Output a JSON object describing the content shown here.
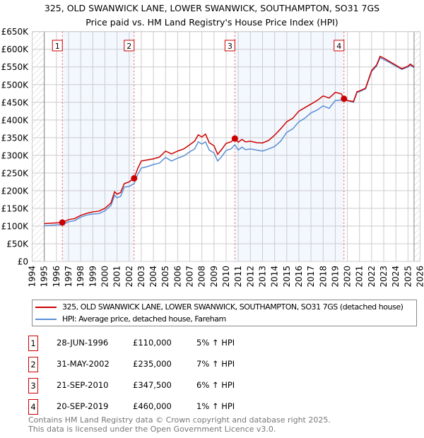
{
  "chart_data": {
    "type": "line",
    "title": "325, OLD SWANWICK LANE, LOWER SWANWICK, SOUTHAMPTON, SO31 7GS",
    "subtitle": "Price paid vs. HM Land Registry's House Price Index (HPI)",
    "xlim": [
      1994,
      2026
    ],
    "ylim": [
      0,
      650000
    ],
    "x_ticks": [
      "1994",
      "1995",
      "1996",
      "1997",
      "1998",
      "1999",
      "2000",
      "2001",
      "2002",
      "2003",
      "2004",
      "2005",
      "2006",
      "2007",
      "2008",
      "2009",
      "2010",
      "2011",
      "2012",
      "2013",
      "2014",
      "2015",
      "2016",
      "2017",
      "2018",
      "2019",
      "2020",
      "2021",
      "2022",
      "2023",
      "2024",
      "2025",
      "2026"
    ],
    "y_ticks": [
      {
        "v": 0,
        "label": "£0"
      },
      {
        "v": 50000,
        "label": "£50K"
      },
      {
        "v": 100000,
        "label": "£100K"
      },
      {
        "v": 150000,
        "label": "£150K"
      },
      {
        "v": 200000,
        "label": "£200K"
      },
      {
        "v": 250000,
        "label": "£250K"
      },
      {
        "v": 300000,
        "label": "£300K"
      },
      {
        "v": 350000,
        "label": "£350K"
      },
      {
        "v": 400000,
        "label": "£400K"
      },
      {
        "v": 450000,
        "label": "£450K"
      },
      {
        "v": 500000,
        "label": "£500K"
      },
      {
        "v": 550000,
        "label": "£550K"
      },
      {
        "v": 600000,
        "label": "£600K"
      },
      {
        "v": 650000,
        "label": "£650K"
      }
    ],
    "grid": true,
    "shaded_ranges": [
      [
        1996.49,
        2002.41
      ],
      [
        2010.72,
        2019.72
      ]
    ],
    "hatched_ranges": [
      [
        1994,
        1995
      ],
      [
        2025.5,
        2026
      ]
    ],
    "series": [
      {
        "name": "325, OLD SWANWICK LANE, LOWER SWANWICK, SOUTHAMPTON, SO31 7GS (detached house)",
        "color": "#cc0000",
        "x": [
          1995,
          1995.5,
          1996,
          1996.49,
          1997,
          1997.5,
          1998,
          1998.5,
          1999,
          1999.5,
          2000,
          2000.5,
          2000.8,
          2001,
          2001.3,
          2001.6,
          2002,
          2002.41,
          2002.7,
          2003,
          2003.5,
          2004,
          2004.5,
          2005,
          2005.5,
          2006,
          2006.5,
          2007,
          2007.4,
          2007.7,
          2008,
          2008.3,
          2008.6,
          2009,
          2009.3,
          2009.6,
          2010,
          2010.4,
          2010.72,
          2011,
          2011.3,
          2011.6,
          2012,
          2012.5,
          2013,
          2013.5,
          2014,
          2014.5,
          2015,
          2015.5,
          2016,
          2016.5,
          2017,
          2017.5,
          2018,
          2018.5,
          2019,
          2019.5,
          2019.72,
          2020,
          2020.5,
          2020.8,
          2021,
          2021.5,
          2022,
          2022.4,
          2022.7,
          2023,
          2023.5,
          2024,
          2024.5,
          2025,
          2025.2,
          2025.5
        ],
        "y": [
          107000,
          108000,
          109000,
          110000,
          118000,
          121000,
          130000,
          136000,
          140000,
          142000,
          150000,
          165000,
          197000,
          190000,
          195000,
          220000,
          225000,
          235000,
          262000,
          284000,
          287000,
          290000,
          295000,
          312000,
          304000,
          312000,
          318000,
          330000,
          340000,
          358000,
          352000,
          360000,
          336000,
          327000,
          303000,
          315000,
          334000,
          338000,
          347500,
          337000,
          345000,
          338000,
          340000,
          336000,
          335000,
          342000,
          357000,
          375000,
          395000,
          405000,
          425000,
          435000,
          445000,
          455000,
          468000,
          462000,
          478000,
          474000,
          460000,
          455000,
          452000,
          480000,
          482000,
          490000,
          540000,
          555000,
          580000,
          575000,
          565000,
          555000,
          545000,
          552000,
          558000,
          550000
        ]
      },
      {
        "name": "HPI: Average price, detached house, Fareham",
        "color": "#5b8fd4",
        "x": [
          1995,
          1995.5,
          1996,
          1996.49,
          1997,
          1997.5,
          1998,
          1998.5,
          1999,
          1999.5,
          2000,
          2000.5,
          2000.8,
          2001,
          2001.3,
          2001.6,
          2002,
          2002.41,
          2002.7,
          2003,
          2003.5,
          2004,
          2004.5,
          2005,
          2005.5,
          2006,
          2006.5,
          2007,
          2007.4,
          2007.7,
          2008,
          2008.3,
          2008.6,
          2009,
          2009.3,
          2009.6,
          2010,
          2010.4,
          2010.72,
          2011,
          2011.3,
          2011.6,
          2012,
          2012.5,
          2013,
          2013.5,
          2014,
          2014.5,
          2015,
          2015.5,
          2016,
          2016.5,
          2017,
          2017.5,
          2018,
          2018.5,
          2019,
          2019.5,
          2019.72,
          2020,
          2020.5,
          2020.8,
          2021,
          2021.5,
          2022,
          2022.4,
          2022.7,
          2023,
          2023.5,
          2024,
          2024.5,
          2025,
          2025.2,
          2025.5
        ],
        "y": [
          101000,
          102000,
          103000,
          104000,
          112000,
          115000,
          125000,
          131000,
          134000,
          135000,
          143000,
          158000,
          187000,
          180000,
          184000,
          210000,
          212000,
          220000,
          245000,
          264000,
          268000,
          274000,
          278000,
          294000,
          284000,
          292000,
          298000,
          310000,
          318000,
          338000,
          332000,
          338000,
          315000,
          307000,
          284000,
          295000,
          314000,
          318000,
          330000,
          315000,
          323000,
          316000,
          318000,
          315000,
          312000,
          318000,
          325000,
          340000,
          365000,
          375000,
          395000,
          405000,
          420000,
          428000,
          440000,
          433000,
          455000,
          456000,
          457000,
          455000,
          450000,
          478000,
          480000,
          488000,
          537000,
          552000,
          576000,
          571000,
          562000,
          552000,
          543000,
          550000,
          555000,
          548000
        ]
      }
    ],
    "sales": [
      {
        "label": "1",
        "x": 1996.49,
        "y": 110000
      },
      {
        "label": "2",
        "x": 2002.41,
        "y": 235000
      },
      {
        "label": "3",
        "x": 2010.72,
        "y": 347500
      },
      {
        "label": "4",
        "x": 2019.72,
        "y": 460000
      }
    ]
  },
  "legend": {
    "property": "325, OLD SWANWICK LANE, LOWER SWANWICK, SOUTHAMPTON, SO31 7GS (detached house)",
    "hpi": "HPI: Average price, detached house, Fareham"
  },
  "transactions": [
    {
      "num": "1",
      "date": "28-JUN-1996",
      "price": "£110,000",
      "hpi": "5% ↑ HPI"
    },
    {
      "num": "2",
      "date": "31-MAY-2002",
      "price": "£235,000",
      "hpi": "7% ↑ HPI"
    },
    {
      "num": "3",
      "date": "21-SEP-2010",
      "price": "£347,500",
      "hpi": "6% ↑ HPI"
    },
    {
      "num": "4",
      "date": "20-SEP-2019",
      "price": "£460,000",
      "hpi": "1% ↑ HPI"
    }
  ],
  "footer": {
    "line1": "Contains HM Land Registry data © Crown copyright and database right 2025.",
    "line2": "This data is licensed under the Open Government Licence v3.0."
  }
}
